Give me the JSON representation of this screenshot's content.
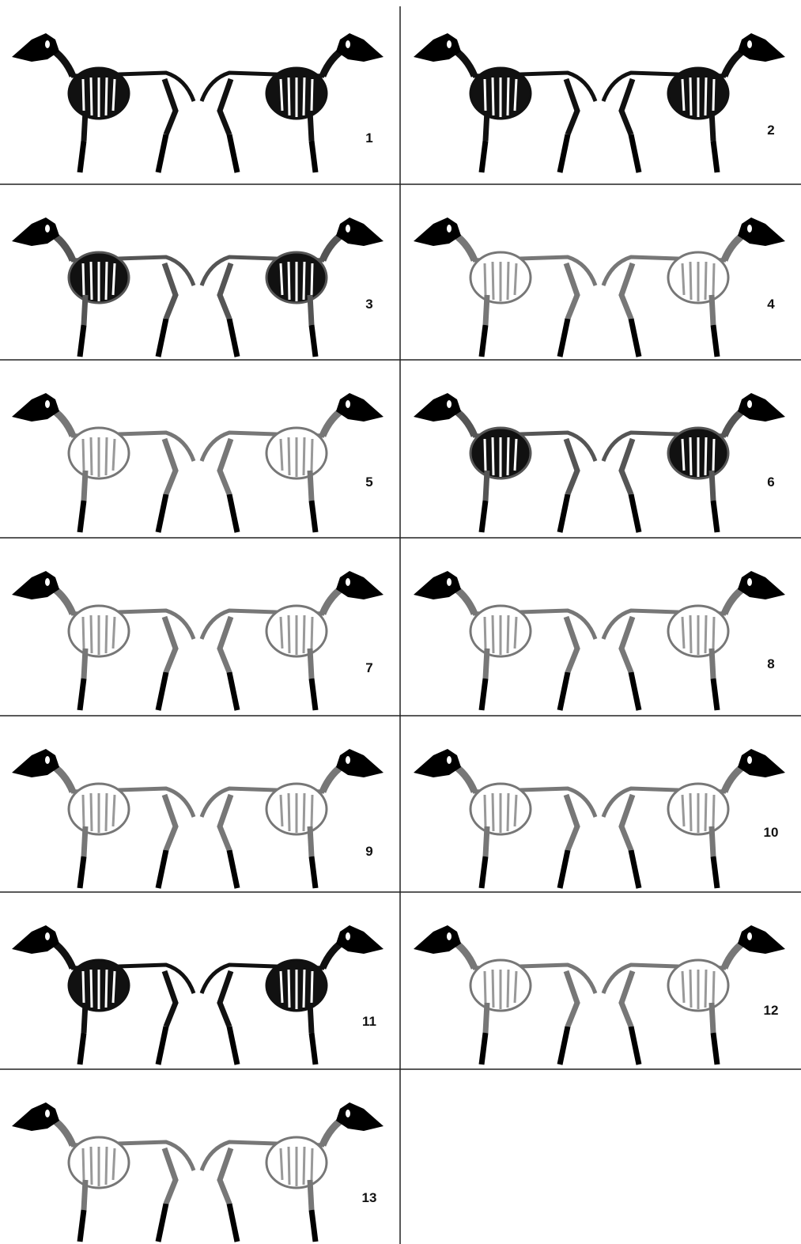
{
  "panels": [
    {
      "label": "1"
    },
    {
      "label": "2"
    },
    {
      "label": "3"
    },
    {
      "label": "4"
    },
    {
      "label": "5"
    },
    {
      "label": "6"
    },
    {
      "label": "7"
    },
    {
      "label": "8"
    },
    {
      "label": "9"
    },
    {
      "label": "10"
    },
    {
      "label": "11"
    },
    {
      "label": "12"
    },
    {
      "label": "13"
    }
  ]
}
